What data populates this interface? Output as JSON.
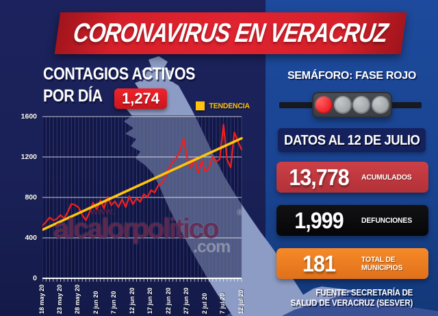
{
  "header": {
    "title": "CORONAVIRUS EN VERACRUZ"
  },
  "chart_section": {
    "title_line1": "CONTAGIOS ACTIVOS",
    "title_line2": "POR DÍA",
    "current_value_badge": "1,274",
    "legend_label": "TENDENCIA",
    "legend_color": "#ffc40d"
  },
  "chart_data": {
    "type": "line",
    "title": "Contagios activos por día",
    "ylim": [
      0,
      1600
    ],
    "y_ticks": [
      0,
      400,
      800,
      1200,
      1600
    ],
    "x_tick_labels": [
      "18 may 20",
      "23 may 20",
      "28 may 20",
      "2 jun 20",
      "7 jun 20",
      "12 jun 20",
      "17 jun 20",
      "22 jun 20",
      "27 jun 20",
      "2 jul 20",
      "7 jul 20",
      "12 jul 20"
    ],
    "x_tick_step_days": 5,
    "grid": {
      "horizontal": true,
      "vertical_daily": true
    },
    "legend_position": "top-right",
    "series": [
      {
        "name": "Contagios activos por día",
        "color": "#ee2020",
        "values": [
          520,
          558,
          602,
          572,
          588,
          626,
          592,
          656,
          736,
          726,
          700,
          626,
          574,
          652,
          748,
          682,
          772,
          690,
          806,
          722,
          762,
          702,
          782,
          704,
          812,
          732,
          792,
          756,
          832,
          802,
          872,
          848,
          922,
          942,
          1002,
          1092,
          1152,
          1192,
          1262,
          1382,
          1182,
          1092,
          1186,
          1042,
          1162,
          1056,
          1092,
          1202,
          1152,
          1182,
          1520,
          1172,
          1096,
          1442,
          1352,
          1274
        ]
      },
      {
        "name": "Tendencia",
        "color": "#ffc40d",
        "type": "trend",
        "endpoint_values": [
          480,
          1385
        ]
      }
    ],
    "last_value": 1274,
    "last_date_label": "12 jul 20"
  },
  "right_panel": {
    "semaforo_label": "SEMÁFORO: FASE ROJO",
    "lights": [
      "red",
      "gray",
      "gray",
      "gray"
    ],
    "light_colors": {
      "red": "#ed1c24",
      "gray": "#9fa2a4"
    },
    "date_banner": "DATOS AL 12 DE JULIO",
    "stats": [
      {
        "value": "13,778",
        "label": "ACUMULADOS",
        "color": "#c23a41"
      },
      {
        "value": "1,999",
        "label": "DEFUNCIONES",
        "color": "#0a0a0c"
      },
      {
        "value": "181",
        "label": "TOTAL DE MUNICIPIOS",
        "color": "#ee7d1f"
      }
    ],
    "source_line1": "FUENTE: SECRETARÍA DE",
    "source_line2": "SALUD DE VERACRUZ (SESVER)"
  },
  "watermark": {
    "www": "www.",
    "name": "alcalorpolitico",
    "reg": "®",
    "com": ".com"
  }
}
